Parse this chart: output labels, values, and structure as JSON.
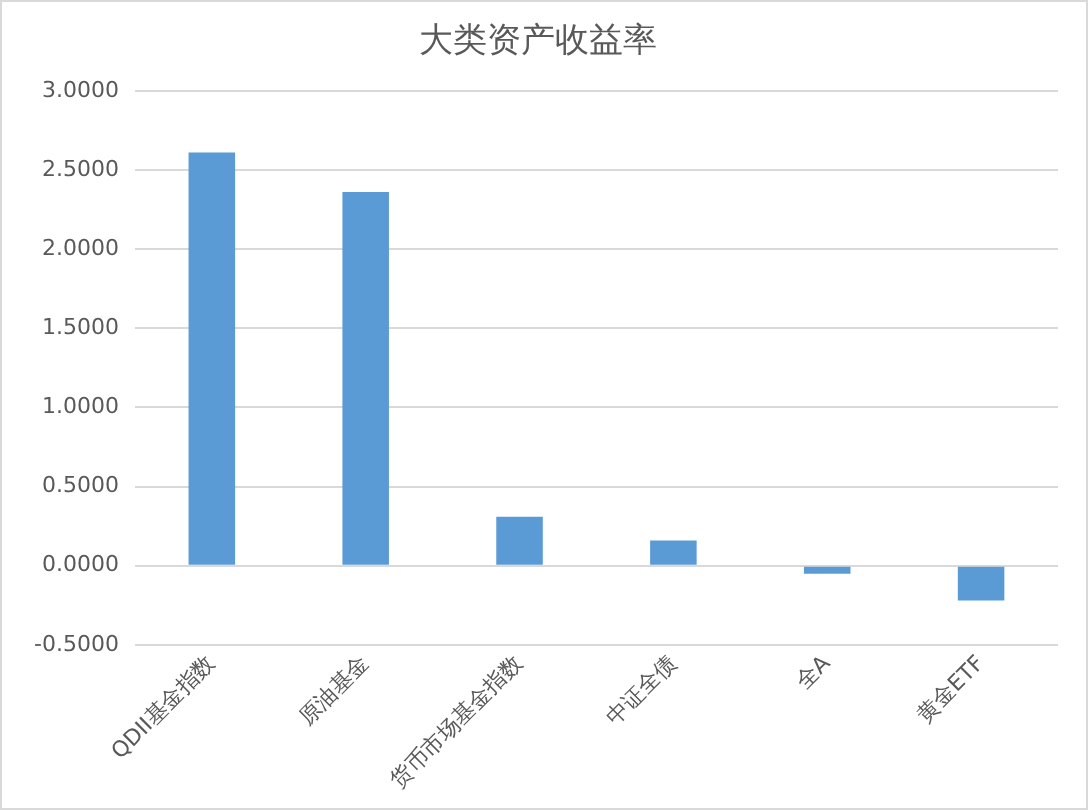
{
  "chart_data": {
    "type": "bar",
    "title": "大类资产收益率",
    "categories": [
      "QDII基金指数",
      "原油基金",
      "货币市场基金指数",
      "中证全债",
      "全A",
      "黄金ETF"
    ],
    "values": [
      2.61,
      2.36,
      0.31,
      0.16,
      -0.05,
      -0.22
    ],
    "color": "#5b9bd5",
    "ylim": [
      -0.5,
      3
    ],
    "yticks": [
      {
        "value": -0.5,
        "label": "-0.5000"
      },
      {
        "value": 0,
        "label": "0.0000"
      },
      {
        "value": 0.5,
        "label": "0.5000"
      },
      {
        "value": 1,
        "label": "1.0000"
      },
      {
        "value": 1.5,
        "label": "1.5000"
      },
      {
        "value": 2,
        "label": "2.0000"
      },
      {
        "value": 2.5,
        "label": "2.5000"
      },
      {
        "value": 3,
        "label": "3.0000"
      }
    ],
    "grid": "y"
  }
}
